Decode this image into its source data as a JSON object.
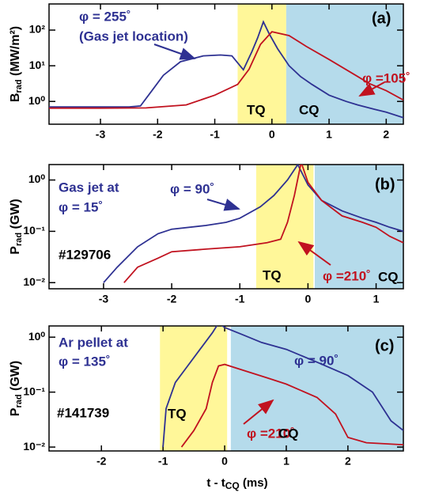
{
  "chart_data": [
    {
      "type": "line",
      "panel": "(a)",
      "log_y": true,
      "ylabel": {
        "main": "B",
        "sub": "rad",
        "unit": " (MW/m²)"
      },
      "xlim": [
        -3.9,
        2.3
      ],
      "xticks": [
        -3,
        -2,
        -1,
        0,
        1,
        2
      ],
      "ylim": [
        0.23,
        540
      ],
      "yticks": [
        {
          "value": 1,
          "label": "10⁰"
        },
        {
          "value": 10,
          "label": "10¹"
        },
        {
          "value": 100,
          "label": "10²"
        }
      ],
      "spans": [
        {
          "label": "TQ",
          "x": [
            -0.6,
            0.25
          ],
          "color": "#fff799"
        },
        {
          "label": "CQ",
          "x": [
            0.25,
            2.3
          ],
          "color": "#b5dbeb"
        }
      ],
      "series": [
        {
          "name": "φ = 255˚",
          "color": "#2e3192",
          "x": [
            -3.9,
            -3.0,
            -2.5,
            -2.3,
            -2.1,
            -1.9,
            -1.6,
            -1.2,
            -0.9,
            -0.7,
            -0.5,
            -0.35,
            -0.25,
            -0.15,
            -0.05,
            0.1,
            0.3,
            0.5,
            0.7,
            1.0,
            1.3,
            1.5,
            1.8,
            2.0,
            2.3
          ],
          "values": [
            0.7,
            0.7,
            0.7,
            0.75,
            2.0,
            5.4,
            13,
            19,
            20,
            19,
            7.7,
            25,
            60,
            170,
            80,
            30,
            10,
            5,
            3,
            1.5,
            1.0,
            0.8,
            0.6,
            0.5,
            0.35
          ]
        },
        {
          "name": "φ =105˚",
          "color": "#c1121f",
          "x": [
            -3.9,
            -3.0,
            -2.2,
            -1.5,
            -1.0,
            -0.6,
            -0.4,
            -0.2,
            0.0,
            0.3,
            0.6,
            1.0,
            1.5,
            1.7,
            2.0,
            2.3
          ],
          "values": [
            0.65,
            0.65,
            0.66,
            0.8,
            1.5,
            3,
            8,
            40,
            90,
            70,
            35,
            15,
            5,
            3.2,
            2,
            1.1
          ]
        }
      ],
      "annotations": [
        "(Gas jet location)"
      ]
    },
    {
      "type": "line",
      "panel": "(b)",
      "log_y": true,
      "ylabel": {
        "main": "P",
        "sub": "rad",
        "unit": " (GW)"
      },
      "xlim": [
        -3.8,
        1.4
      ],
      "xticks": [
        -3,
        -2,
        -1,
        0,
        1
      ],
      "ylim": [
        0.0076,
        2.0
      ],
      "yticks": [
        {
          "value": 0.01,
          "label": "10⁻²"
        },
        {
          "value": 0.1,
          "label": "10⁻¹"
        },
        {
          "value": 1,
          "label": "10⁰"
        }
      ],
      "spans": [
        {
          "label": "TQ",
          "x": [
            -0.76,
            0.08
          ],
          "color": "#fff799"
        },
        {
          "label": "CQ",
          "x": [
            0.1,
            1.4
          ],
          "color": "#b5dbeb"
        }
      ],
      "series": [
        {
          "name": "φ = 90˚",
          "color": "#2e3192",
          "x": [
            -3.0,
            -2.8,
            -2.5,
            -2.2,
            -2.0,
            -1.5,
            -1.2,
            -1.0,
            -0.7,
            -0.5,
            -0.3,
            -0.15,
            0.0,
            0.2,
            0.5,
            0.8,
            1.0,
            1.2,
            1.4
          ],
          "values": [
            0.01,
            0.02,
            0.05,
            0.09,
            0.11,
            0.13,
            0.15,
            0.18,
            0.3,
            0.5,
            1.0,
            2.0,
            0.8,
            0.4,
            0.25,
            0.18,
            0.15,
            0.12,
            0.1
          ]
        },
        {
          "name": "φ =210˚",
          "color": "#c1121f",
          "x": [
            -2.7,
            -2.5,
            -2.2,
            -2.0,
            -1.5,
            -1.0,
            -0.6,
            -0.4,
            -0.3,
            -0.2,
            -0.1,
            0.0,
            0.2,
            0.5,
            0.8,
            1.0,
            1.2,
            1.4
          ],
          "values": [
            0.01,
            0.02,
            0.03,
            0.04,
            0.045,
            0.05,
            0.06,
            0.07,
            0.15,
            0.5,
            2.2,
            0.9,
            0.4,
            0.2,
            0.15,
            0.12,
            0.08,
            0.06
          ]
        }
      ],
      "annotations": [
        "Gas jet at",
        "φ = 15˚",
        "#129706"
      ]
    },
    {
      "type": "line",
      "panel": "(c)",
      "log_y": true,
      "ylabel": {
        "main": "P",
        "sub": "rad",
        "unit": " (GW)"
      },
      "xlabel": {
        "main": "t - t",
        "sub": "CQ",
        "unit": " (ms)"
      },
      "xlim": [
        -2.85,
        2.9
      ],
      "xticks": [
        -2,
        -1,
        0,
        1,
        2
      ],
      "ylim": [
        0.0085,
        1.6
      ],
      "yticks": [
        {
          "value": 0.01,
          "label": "10⁻²"
        },
        {
          "value": 0.1,
          "label": "10⁻¹"
        },
        {
          "value": 1,
          "label": "10⁰"
        }
      ],
      "spans": [
        {
          "label": "TQ",
          "x": [
            -1.05,
            0.04
          ],
          "color": "#fff799"
        },
        {
          "label": "CQ",
          "x": [
            0.1,
            2.9
          ],
          "color": "#b5dbeb"
        }
      ],
      "series": [
        {
          "name": "φ = 90˚",
          "color": "#2e3192",
          "x": [
            -1.0,
            -0.95,
            -0.8,
            -0.6,
            -0.4,
            -0.2,
            -0.1,
            0.0,
            0.3,
            0.6,
            1.0,
            1.5,
            2.0,
            2.4,
            2.7,
            2.9
          ],
          "values": [
            0.01,
            0.05,
            0.15,
            0.3,
            0.6,
            1.2,
            1.8,
            1.5,
            1.1,
            0.8,
            0.6,
            0.35,
            0.2,
            0.1,
            0.03,
            0.02
          ]
        },
        {
          "name": "φ =210˚",
          "color": "#c1121f",
          "x": [
            -0.7,
            -0.5,
            -0.3,
            -0.2,
            -0.1,
            0.0,
            0.3,
            0.7,
            1.0,
            1.5,
            1.8,
            2.0,
            2.3,
            2.9
          ],
          "values": [
            0.01,
            0.02,
            0.05,
            0.15,
            0.3,
            0.32,
            0.25,
            0.18,
            0.14,
            0.08,
            0.04,
            0.015,
            0.012,
            0.011
          ]
        }
      ],
      "annotations": [
        "Ar pellet at",
        "φ = 135˚",
        "#141739"
      ]
    }
  ]
}
